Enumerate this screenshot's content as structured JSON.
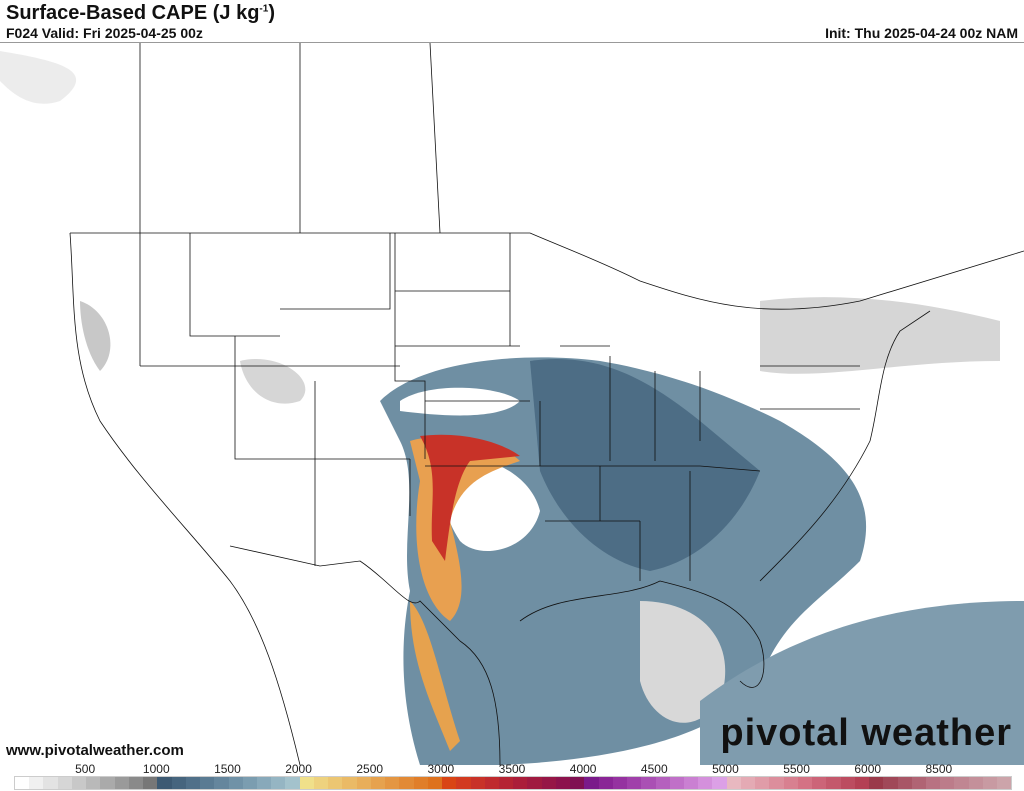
{
  "header": {
    "title": "Surface-Based CAPE (J kg",
    "title_sup": "-1",
    "title_end": ")",
    "valid": "F024 Valid: Fri 2025-04-25 00z",
    "init": "Init: Thu 2025-04-24 00z NAM"
  },
  "footer": {
    "website": "www.pivotalweather.com",
    "brand": "pivotal weather"
  },
  "colorbar": {
    "ticks": [
      "500",
      "1000",
      "1500",
      "2000",
      "2500",
      "3000",
      "3500",
      "4000",
      "4500",
      "5000",
      "5500",
      "6000",
      "8500"
    ],
    "colors": [
      "#ffffff",
      "#f0f0f0",
      "#e3e3e3",
      "#d6d6d6",
      "#c8c8c8",
      "#b9b9b9",
      "#aaaaaa",
      "#9a9a9a",
      "#8a8a8a",
      "#777777",
      "#3d5a73",
      "#46657e",
      "#507089",
      "#5a7b93",
      "#65869d",
      "#7092a7",
      "#7b9db0",
      "#88a9ba",
      "#95b5c3",
      "#a3c2cc",
      "#f0e08a",
      "#eed27e",
      "#ecc672",
      "#eaba66",
      "#e8ae5a",
      "#e6a24e",
      "#e49642",
      "#e28a36",
      "#e07e2a",
      "#de721e",
      "#d94515",
      "#d23a20",
      "#c83228",
      "#bf2a2e",
      "#b52434",
      "#ab1e3a",
      "#a01a40",
      "#961646",
      "#8c124c",
      "#801052",
      "#7a1a8a",
      "#8a2596",
      "#9532a0",
      "#a040aa",
      "#aa50b4",
      "#b560be",
      "#c070c8",
      "#ca80d2",
      "#d490dc",
      "#dca0e6",
      "#e8b8c0",
      "#e4aab4",
      "#e09ca8",
      "#dc8e9c",
      "#d88090",
      "#d47284",
      "#cc6478",
      "#c4586c",
      "#bc4c60",
      "#b44054",
      "#9a3a4a",
      "#a04858",
      "#a85666",
      "#b06474",
      "#b87282",
      "#bc7c8a",
      "#c08692",
      "#c4909a",
      "#c89aa2",
      "#cca4aa"
    ]
  }
}
